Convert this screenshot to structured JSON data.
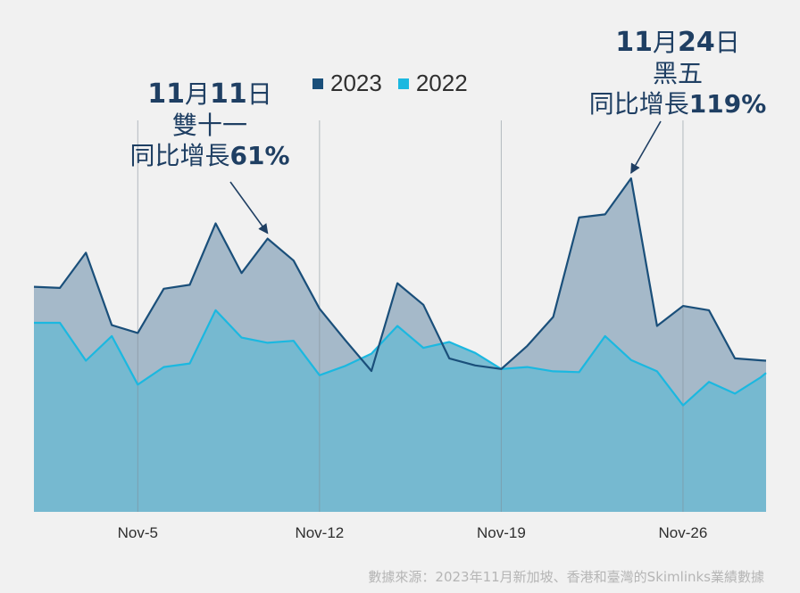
{
  "chart_data": {
    "type": "area",
    "x_tick_labels": [
      "Nov-5",
      "Nov-12",
      "Nov-19",
      "Nov-26"
    ],
    "x_tick_positions": [
      5,
      12,
      19,
      26
    ],
    "x_range": [
      1,
      29.2
    ],
    "ylim": [
      0,
      100
    ],
    "grid": "vertical lines at ticks",
    "legend_placement": "top-center",
    "series": [
      {
        "name": "2023",
        "color": "#1a4f7a",
        "x": [
          1,
          2,
          3,
          4,
          5,
          6,
          7,
          8,
          9,
          10,
          11,
          12,
          13,
          14,
          15,
          16,
          17,
          18,
          19,
          20,
          21,
          22,
          23,
          24,
          25,
          26,
          27,
          28,
          29,
          29.2
        ],
        "values": [
          57.5,
          57.2,
          66.2,
          47.7,
          45.7,
          57.0,
          58.0,
          73.7,
          61.0,
          69.8,
          64.2,
          51.9,
          43.8,
          36.0,
          58.4,
          52.9,
          39.2,
          37.4,
          36.5,
          42.4,
          49.8,
          75.2,
          76.0,
          85.2,
          47.5,
          52.6,
          51.5,
          39.2,
          38.7,
          38.6
        ]
      },
      {
        "name": "2022",
        "color": "#1bb8e0",
        "x": [
          1,
          2,
          3,
          4,
          5,
          6,
          7,
          8,
          9,
          10,
          11,
          12,
          13,
          14,
          15,
          16,
          17,
          18,
          19,
          20,
          21,
          22,
          23,
          24,
          25,
          26,
          27,
          28,
          29,
          29.2
        ],
        "values": [
          48.3,
          48.3,
          38.6,
          44.9,
          32.5,
          37.0,
          37.9,
          51.5,
          44.5,
          43.2,
          43.7,
          34.9,
          37.3,
          40.4,
          47.5,
          41.9,
          43.4,
          40.6,
          36.5,
          37.0,
          35.9,
          35.7,
          44.9,
          38.8,
          35.9,
          27.2,
          33.2,
          30.2,
          34.4,
          35.5
        ]
      }
    ],
    "annotations": [
      {
        "date_line": {
          "digits1": "11",
          "char1": "月",
          "digits2": "11",
          "char2": "日"
        },
        "event": "雙十一",
        "growth_label": "同比增長",
        "growth_value": "61%",
        "arrow_to_x": 10
      },
      {
        "date_line": {
          "digits1": "11",
          "char1": "月",
          "digits2": "24",
          "char2": "日"
        },
        "event": "黑五",
        "growth_label": "同比增長",
        "growth_value": "119%",
        "arrow_to_x": 24
      }
    ],
    "source": "數據來源：2023年11月新加坡、香港和臺灣的Skimlinks業績數據"
  }
}
